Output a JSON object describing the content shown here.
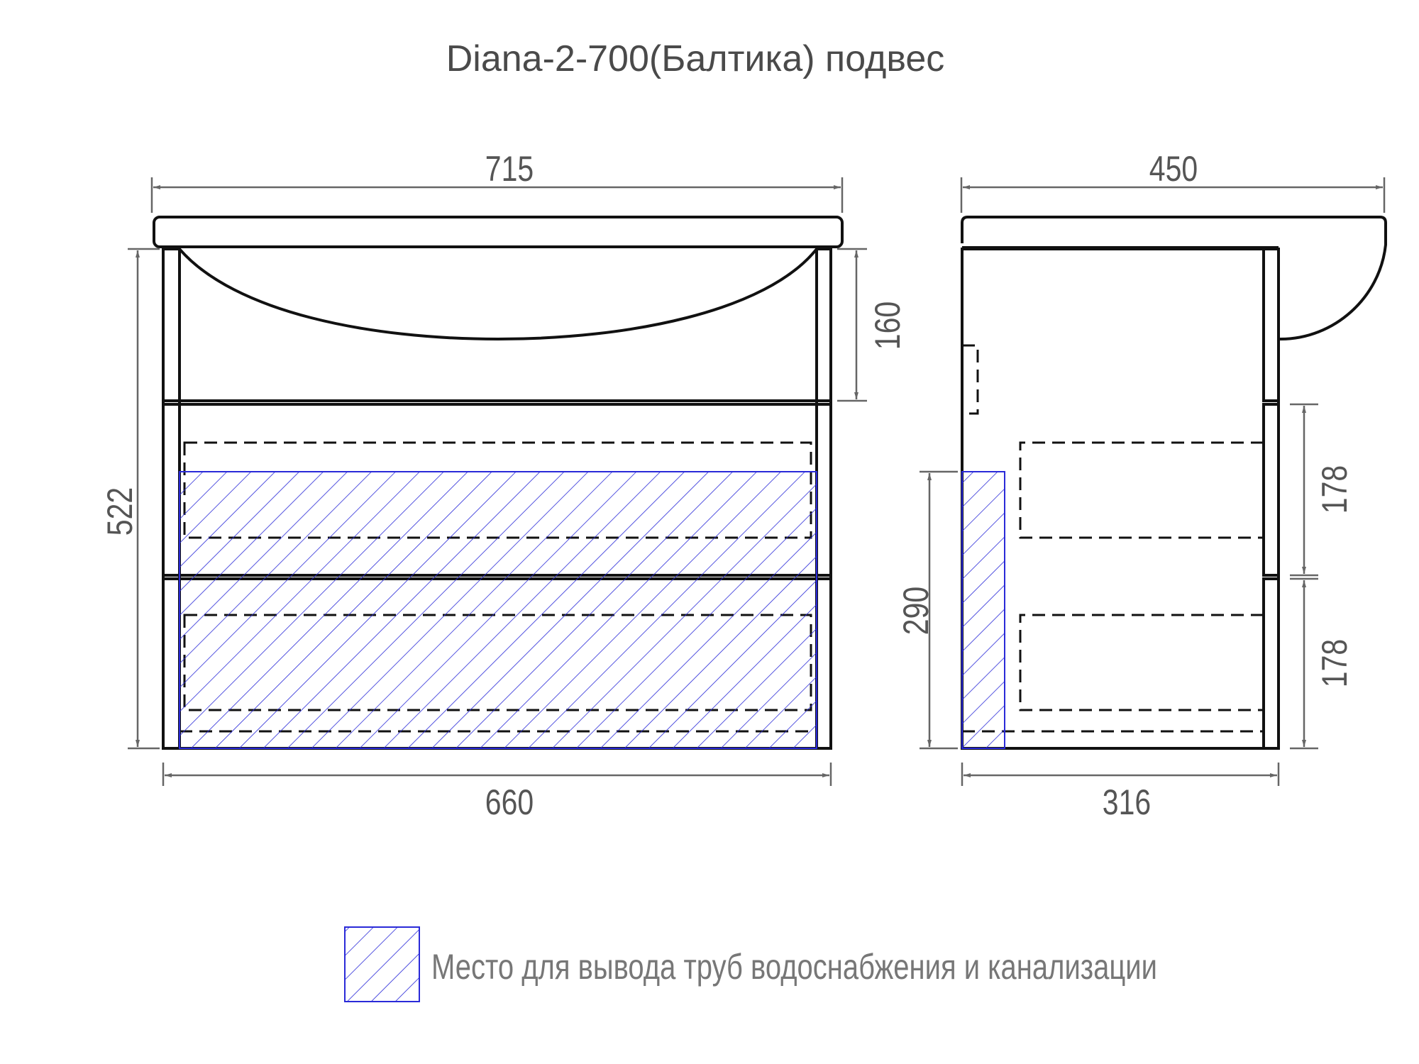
{
  "title": "Diana-2-700(Балтика) подвес",
  "front_view": {
    "dims": {
      "top_width": "715",
      "bottom_width": "660",
      "height": "522",
      "basin_depth": "160"
    }
  },
  "side_view": {
    "dims": {
      "top_depth": "450",
      "bottom_depth": "316",
      "pipe_zone_height": "290",
      "drawer_top": "178",
      "drawer_bottom": "178"
    }
  },
  "legend": {
    "label": "Место для вывода труб водоснабжения и канализации",
    "hatch_color": "#2a2ad8"
  },
  "colors": {
    "outline": "#111111",
    "dimension": "#555555",
    "hatch": "#2a2ad8"
  }
}
